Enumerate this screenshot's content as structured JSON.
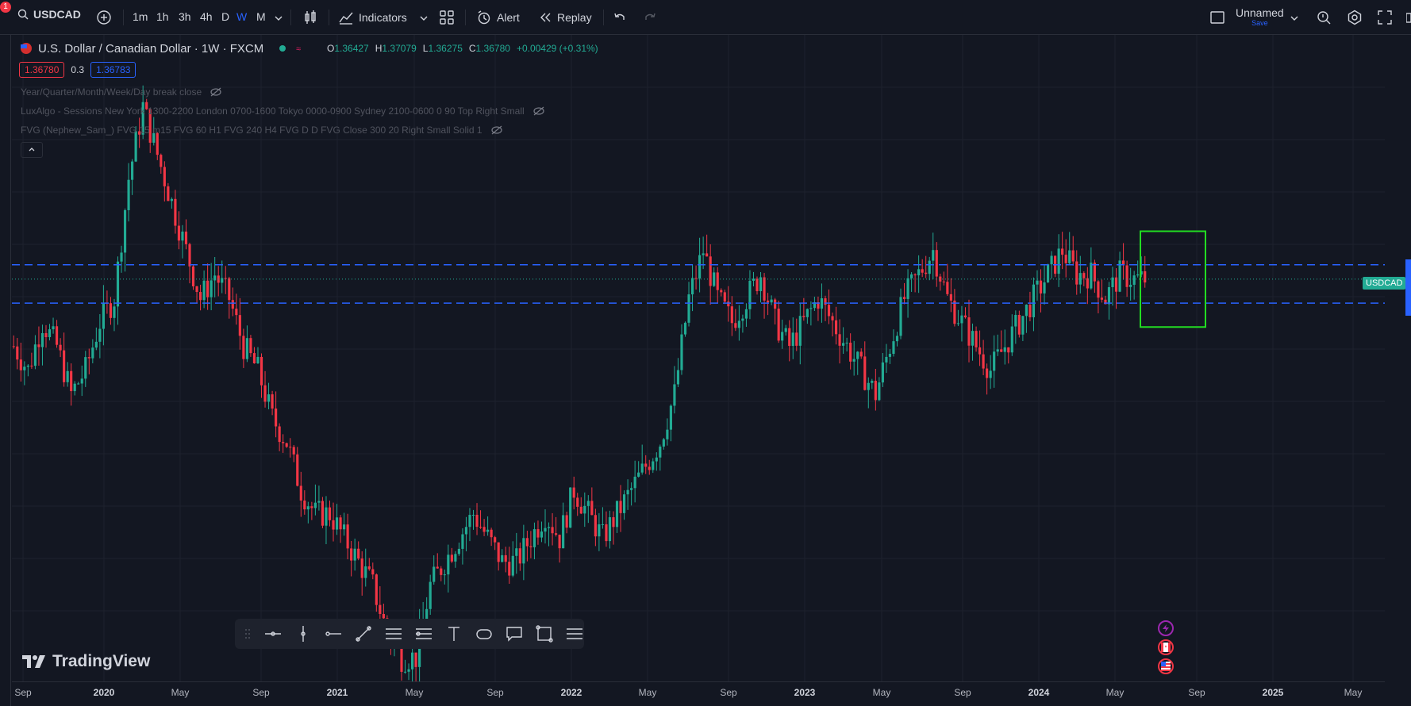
{
  "toolbar": {
    "notification_count": "1",
    "symbol": "USDCAD",
    "timeframes": [
      "1m",
      "1h",
      "3h",
      "4h",
      "D",
      "W",
      "M"
    ],
    "active_timeframe": "W",
    "indicators_label": "Indicators",
    "alert_label": "Alert",
    "replay_label": "Replay",
    "layout_name": "Unnamed",
    "save_label": "Save"
  },
  "legend": {
    "title": "U.S. Dollar / Canadian Dollar · 1W · FXCM",
    "open_label": "O",
    "open": "1.36427",
    "high_label": "H",
    "high": "1.37079",
    "low_label": "L",
    "low": "1.36275",
    "close_label": "C",
    "close": "1.36780",
    "change": "+0.00429 (+0.31%)",
    "sell_price": "1.36780",
    "spread": "0.3",
    "buy_price": "1.36783"
  },
  "indicators": [
    "Year/Quarter/Month/Week/Day break close",
    "LuxAlgo - Sessions New York 1300-2200 London 0700-1600 Tokyo 0000-0900 Sydney 2100-0600 0 90 Top Right Small",
    "FVG (Nephew_Sam_) FVG 15 m15 FVG 60 H1 FVG 240 H4 FVG D D FVG Close 300 20 Right Small Solid 1"
  ],
  "price_label": "USDCAD",
  "brand": "TradingView",
  "time_axis": [
    "Sep",
    "2020",
    "May",
    "Sep",
    "2021",
    "May",
    "Sep",
    "2022",
    "May",
    "Sep",
    "2023",
    "May",
    "Sep",
    "2024",
    "May",
    "Sep",
    "2025",
    "May"
  ],
  "colors": {
    "background": "#131722",
    "up": "#22ab94",
    "down": "#f23645",
    "accent": "#2962ff",
    "box": "#22dd22"
  },
  "chart_data": {
    "type": "candlestick",
    "symbol": "USDCAD",
    "interval": "1W",
    "series": [
      {
        "name": "USDCAD",
        "close_levels": [
          1.34,
          1.33,
          1.35,
          1.34,
          1.32,
          1.33,
          1.35,
          1.36,
          1.41,
          1.44,
          1.42,
          1.4,
          1.38,
          1.36,
          1.37,
          1.36,
          1.34,
          1.33,
          1.31,
          1.3,
          1.28,
          1.27,
          1.27,
          1.26,
          1.25,
          1.24,
          1.22,
          1.21,
          1.21,
          1.24,
          1.25,
          1.26,
          1.27,
          1.26,
          1.25,
          1.25,
          1.26,
          1.27,
          1.26,
          1.28,
          1.27,
          1.26,
          1.27,
          1.28,
          1.29,
          1.3,
          1.32,
          1.36,
          1.38,
          1.36,
          1.35,
          1.36,
          1.37,
          1.35,
          1.34,
          1.35,
          1.36,
          1.35,
          1.34,
          1.33,
          1.32,
          1.34,
          1.36,
          1.37,
          1.38,
          1.36,
          1.35,
          1.34,
          1.33,
          1.34,
          1.35,
          1.36,
          1.37,
          1.38,
          1.37,
          1.37,
          1.36,
          1.37,
          1.368
        ]
      }
    ],
    "horizontal_levels": [
      1.374,
      1.358
    ],
    "ylim": [
      1.2,
      1.47
    ]
  }
}
